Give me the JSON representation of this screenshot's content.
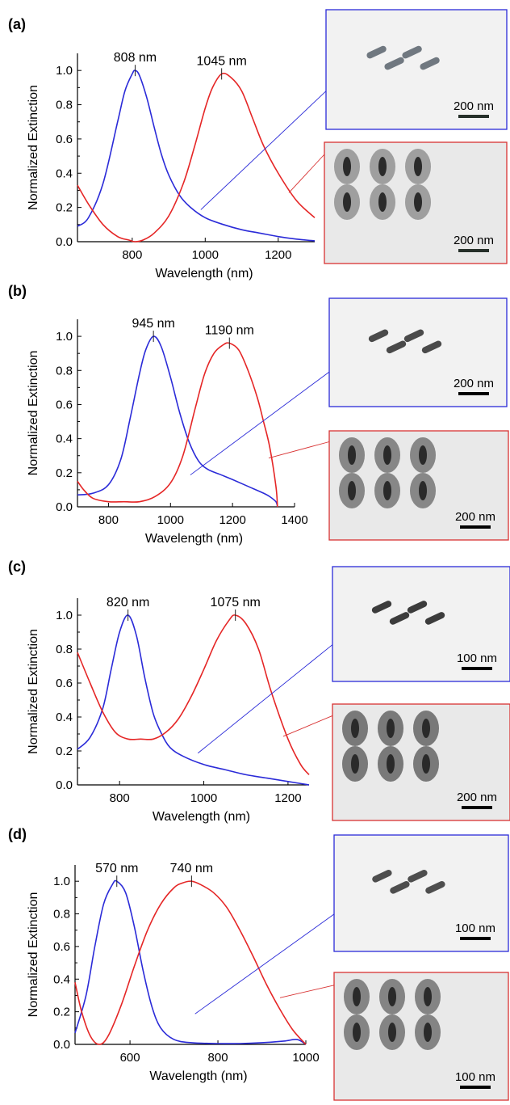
{
  "chart_data": [
    {
      "panel_label": "(a)",
      "type": "line",
      "xlabel": "Wavelength (nm)",
      "ylabel": "Normalized Extinction",
      "xlim": [
        650,
        1300
      ],
      "ylim": [
        0,
        1.1
      ],
      "x_ticks": [
        800,
        1000,
        1200
      ],
      "y_ticks": [
        0.0,
        0.2,
        0.4,
        0.6,
        0.8,
        1.0
      ],
      "grid": false,
      "series": [
        {
          "color": "#2b2bd8",
          "x": [
            650,
            680,
            720,
            760,
            780,
            800,
            808,
            820,
            840,
            860,
            880,
            900,
            930,
            960,
            1000,
            1050,
            1100,
            1150,
            1200,
            1250,
            1300
          ],
          "y": [
            0.09,
            0.14,
            0.34,
            0.7,
            0.88,
            0.98,
            1.0,
            0.97,
            0.84,
            0.67,
            0.51,
            0.39,
            0.27,
            0.2,
            0.14,
            0.1,
            0.07,
            0.05,
            0.03,
            0.015,
            0.005
          ]
        },
        {
          "color": "#e52626",
          "x": [
            650,
            680,
            720,
            760,
            790,
            808,
            830,
            860,
            900,
            940,
            970,
            1000,
            1020,
            1045,
            1070,
            1100,
            1130,
            1160,
            1200,
            1250,
            1300
          ],
          "y": [
            0.33,
            0.22,
            0.1,
            0.03,
            0.01,
            0.0,
            0.01,
            0.05,
            0.15,
            0.34,
            0.55,
            0.78,
            0.9,
            0.98,
            0.96,
            0.88,
            0.72,
            0.56,
            0.4,
            0.24,
            0.14
          ]
        }
      ],
      "annotations": [
        {
          "text": "808 nm",
          "x": 808,
          "y": 1.0
        },
        {
          "text": "1045 nm",
          "x": 1045,
          "y": 0.98
        }
      ],
      "insets": [
        {
          "frame_color": "#2b2bd8",
          "scale_bar": "200 nm"
        },
        {
          "frame_color": "#d83232",
          "scale_bar": "200 nm"
        }
      ]
    },
    {
      "panel_label": "(b)",
      "type": "line",
      "xlabel": "Wavelength (nm)",
      "ylabel": "Normalized Extinction",
      "xlim": [
        700,
        1400
      ],
      "ylim": [
        0,
        1.1
      ],
      "x_ticks": [
        800,
        1000,
        1200,
        1400
      ],
      "y_ticks": [
        0.0,
        0.2,
        0.4,
        0.6,
        0.8,
        1.0
      ],
      "grid": false,
      "series": [
        {
          "color": "#2b2bd8",
          "x": [
            700,
            750,
            800,
            840,
            870,
            900,
            920,
            945,
            970,
            1000,
            1030,
            1060,
            1090,
            1120,
            1160,
            1200,
            1250,
            1300,
            1320,
            1340,
            1345
          ],
          "y": [
            0.07,
            0.08,
            0.13,
            0.28,
            0.52,
            0.78,
            0.92,
            1.0,
            0.94,
            0.76,
            0.55,
            0.38,
            0.27,
            0.22,
            0.19,
            0.16,
            0.12,
            0.08,
            0.06,
            0.03,
            0.0
          ]
        },
        {
          "color": "#e52626",
          "x": [
            700,
            720,
            750,
            800,
            850,
            900,
            950,
            1000,
            1040,
            1080,
            1110,
            1140,
            1170,
            1190,
            1220,
            1250,
            1280,
            1300,
            1320,
            1340,
            1345
          ],
          "y": [
            0.15,
            0.1,
            0.05,
            0.03,
            0.03,
            0.03,
            0.06,
            0.14,
            0.3,
            0.58,
            0.78,
            0.9,
            0.95,
            0.96,
            0.92,
            0.8,
            0.64,
            0.5,
            0.35,
            0.12,
            0.0
          ]
        }
      ],
      "annotations": [
        {
          "text": "945 nm",
          "x": 945,
          "y": 1.0
        },
        {
          "text": "1190 nm",
          "x": 1190,
          "y": 0.96
        }
      ],
      "insets": [
        {
          "frame_color": "#2b2bd8",
          "scale_bar": "200 nm"
        },
        {
          "frame_color": "#d83232",
          "scale_bar": "200 nm"
        }
      ]
    },
    {
      "panel_label": "(c)",
      "type": "line",
      "xlabel": "Wavelength (nm)",
      "ylabel": "Normalized Extinction",
      "xlim": [
        700,
        1250
      ],
      "ylim": [
        0,
        1.1
      ],
      "x_ticks": [
        800,
        1000,
        1200
      ],
      "y_ticks": [
        0.0,
        0.2,
        0.4,
        0.6,
        0.8,
        1.0
      ],
      "grid": false,
      "series": [
        {
          "color": "#2b2bd8",
          "x": [
            700,
            730,
            760,
            780,
            800,
            820,
            840,
            860,
            880,
            900,
            920,
            950,
            1000,
            1050,
            1100,
            1150,
            1200,
            1250
          ],
          "y": [
            0.21,
            0.28,
            0.45,
            0.68,
            0.9,
            1.0,
            0.88,
            0.63,
            0.42,
            0.3,
            0.22,
            0.17,
            0.12,
            0.09,
            0.06,
            0.04,
            0.02,
            0.0
          ]
        },
        {
          "color": "#e52626",
          "x": [
            700,
            730,
            760,
            790,
            820,
            850,
            880,
            910,
            940,
            970,
            1000,
            1030,
            1060,
            1075,
            1100,
            1130,
            1160,
            1200,
            1230,
            1250
          ],
          "y": [
            0.78,
            0.6,
            0.43,
            0.31,
            0.27,
            0.27,
            0.27,
            0.31,
            0.39,
            0.52,
            0.68,
            0.85,
            0.97,
            1.0,
            0.95,
            0.8,
            0.55,
            0.27,
            0.12,
            0.06
          ]
        }
      ],
      "annotations": [
        {
          "text": "820 nm",
          "x": 820,
          "y": 1.0
        },
        {
          "text": "1075 nm",
          "x": 1075,
          "y": 1.0
        }
      ],
      "insets": [
        {
          "frame_color": "#2b2bd8",
          "scale_bar": "100 nm"
        },
        {
          "frame_color": "#d83232",
          "scale_bar": "200 nm"
        }
      ]
    },
    {
      "panel_label": "(d)",
      "type": "line",
      "xlabel": "Wavelength (nm)",
      "ylabel": "Normalized Extinction",
      "xlim": [
        475,
        1000
      ],
      "ylim": [
        0,
        1.1
      ],
      "x_ticks": [
        600,
        800,
        1000
      ],
      "y_ticks": [
        0.0,
        0.2,
        0.4,
        0.6,
        0.8,
        1.0
      ],
      "grid": false,
      "series": [
        {
          "color": "#2b2bd8",
          "x": [
            475,
            500,
            520,
            540,
            560,
            570,
            590,
            610,
            630,
            650,
            670,
            700,
            740,
            800,
            850,
            900,
            950,
            980,
            1000
          ],
          "y": [
            0.07,
            0.3,
            0.6,
            0.86,
            0.98,
            1.0,
            0.93,
            0.72,
            0.45,
            0.23,
            0.1,
            0.03,
            0.01,
            0.005,
            0.005,
            0.01,
            0.02,
            0.03,
            0.0
          ]
        },
        {
          "color": "#e52626",
          "x": [
            475,
            490,
            510,
            530,
            550,
            580,
            610,
            640,
            670,
            700,
            720,
            740,
            760,
            790,
            820,
            850,
            880,
            910,
            940,
            970,
            1000
          ],
          "y": [
            0.38,
            0.2,
            0.05,
            0.0,
            0.05,
            0.24,
            0.48,
            0.7,
            0.86,
            0.96,
            0.99,
            1.0,
            0.98,
            0.93,
            0.84,
            0.7,
            0.54,
            0.37,
            0.22,
            0.09,
            0.0
          ]
        }
      ],
      "annotations": [
        {
          "text": "570 nm",
          "x": 570,
          "y": 1.0
        },
        {
          "text": "740 nm",
          "x": 740,
          "y": 1.0
        }
      ],
      "insets": [
        {
          "frame_color": "#2b2bd8",
          "scale_bar": "100 nm"
        },
        {
          "frame_color": "#d83232",
          "scale_bar": "100 nm"
        }
      ]
    }
  ]
}
